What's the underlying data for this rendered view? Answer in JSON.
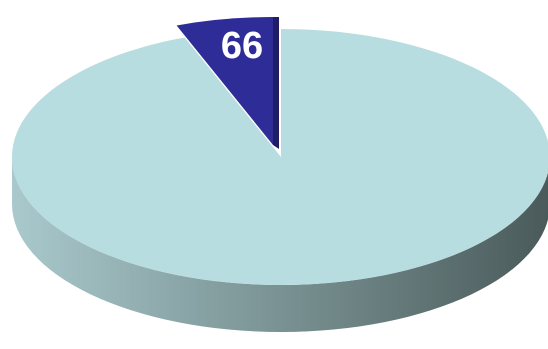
{
  "chart_data": {
    "type": "pie",
    "style": "3d-exploded",
    "categories": [
      "",
      ""
    ],
    "values": [
      null,
      66
    ],
    "data_labels": [
      "",
      "66"
    ],
    "colors": {
      "main_slice_top": "#b8dde1",
      "main_slice_side_light": "#a9c9cc",
      "main_slice_side_dark": "#4a5a5a",
      "exploded_slice_top": "#2e2d98",
      "exploded_slice_side": "#1e1d66",
      "label": "#ffffff"
    },
    "legend": "none",
    "grid": false
  }
}
